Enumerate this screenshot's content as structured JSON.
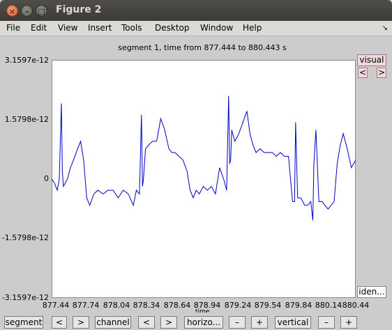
{
  "window": {
    "title": "Figure 2"
  },
  "menu": [
    "File",
    "Edit",
    "View",
    "Insert",
    "Tools",
    "Desktop",
    "Window",
    "Help"
  ],
  "plot": {
    "title": "segment 1, time from 877.444 to 880.443 s",
    "xlabel": "time"
  },
  "side_buttons": {
    "visual": "visual",
    "prev": "<",
    "next": ">",
    "identify": "iden..."
  },
  "bottom_buttons": {
    "segment": "segment",
    "seg_prev": "<",
    "seg_next": ">",
    "channel": "channel",
    "ch_prev": "<",
    "ch_next": ">",
    "horizontal": "horizo...",
    "h_minus": "–",
    "h_plus": "+",
    "vertical": "vertical",
    "v_minus": "–",
    "v_plus": "+"
  },
  "colors": {
    "trace": "#0000c8",
    "plot_bg": "#ffffff",
    "window_bg": "#cccccc"
  },
  "chart_data": {
    "type": "line",
    "title": "segment 1, time from 877.444 to 880.443 s",
    "xlabel": "time",
    "ylabel": "",
    "xlim": [
      877.444,
      880.443
    ],
    "ylim": [
      -3.1597e-12,
      3.1597e-12
    ],
    "xticks": [
      "877.44",
      "877.74",
      "878.04",
      "878.34",
      "878.64",
      "878.94",
      "879.24",
      "879.54",
      "879.84",
      "880.14",
      "880.44"
    ],
    "yticks": [
      "3.1597e-12",
      "1.5798e-12",
      "0",
      "-1.5798e-12",
      "-3.1597e-12"
    ],
    "grid": false,
    "series": [
      {
        "x": [
          877.444,
          877.47,
          877.5,
          877.52,
          877.54,
          877.55,
          877.56,
          877.58,
          877.6,
          877.63,
          877.66,
          877.7,
          877.73,
          877.76,
          877.79,
          877.82,
          877.86,
          877.9,
          877.95,
          878.0,
          878.05,
          878.1,
          878.15,
          878.2,
          878.25,
          878.28,
          878.31,
          878.33,
          878.34,
          878.35,
          878.37,
          878.4,
          878.44,
          878.48,
          878.52,
          878.56,
          878.6,
          878.63,
          878.66,
          878.7,
          878.74,
          878.78,
          878.81,
          878.84,
          878.87,
          878.9,
          878.94,
          878.98,
          879.02,
          879.06,
          879.1,
          879.14,
          879.17,
          879.19,
          879.2,
          879.21,
          879.22,
          879.25,
          879.29,
          879.33,
          879.37,
          879.4,
          879.43,
          879.46,
          879.5,
          879.54,
          879.58,
          879.62,
          879.66,
          879.7,
          879.74,
          879.78,
          879.82,
          879.84,
          879.85,
          879.87,
          879.9,
          879.94,
          879.97,
          880.0,
          880.02,
          880.03,
          880.05,
          880.08,
          880.11,
          880.14,
          880.17,
          880.2,
          880.23,
          880.26,
          880.29,
          880.32,
          880.36,
          880.4,
          880.443
        ],
        "y": [
          0.0,
          -1e-13,
          -3e-13,
          0.0,
          2e-12,
          2e-13,
          -2e-13,
          -1e-13,
          0.0,
          3e-13,
          5e-13,
          8e-13,
          1e-12,
          5e-13,
          -5e-13,
          -7e-13,
          -4e-13,
          -3e-13,
          -4e-13,
          -3e-13,
          -3e-13,
          -5e-13,
          -3e-13,
          -4e-13,
          -7e-13,
          -3e-13,
          -4e-13,
          1.7e-12,
          -2e-13,
          0.0,
          8e-13,
          9e-13,
          1e-12,
          1e-12,
          1.6e-12,
          1.3e-12,
          8e-13,
          7e-13,
          7e-13,
          6e-13,
          5e-13,
          2e-13,
          -3e-13,
          -5e-13,
          -3e-13,
          -4e-13,
          -2e-13,
          -3e-13,
          -2e-13,
          -4e-13,
          3e-13,
          0.0,
          -3e-13,
          2.2e-12,
          4e-13,
          5e-13,
          1.3e-12,
          1e-12,
          1.2e-12,
          1.5e-12,
          1.8e-12,
          1.2e-12,
          9e-13,
          7e-13,
          8e-13,
          7e-13,
          7e-13,
          7e-13,
          6e-13,
          7e-13,
          6e-13,
          6e-13,
          -6e-13,
          -6e-13,
          1.5e-12,
          -5e-13,
          -5e-13,
          -7e-13,
          -7e-13,
          -6e-13,
          -1.1e-12,
          4e-13,
          1.3e-12,
          -6e-13,
          -6e-13,
          -7e-13,
          -8e-13,
          -7e-13,
          -6e-13,
          4e-13,
          9e-13,
          1.2e-12,
          8e-13,
          3e-13,
          5e-13
        ]
      }
    ]
  }
}
